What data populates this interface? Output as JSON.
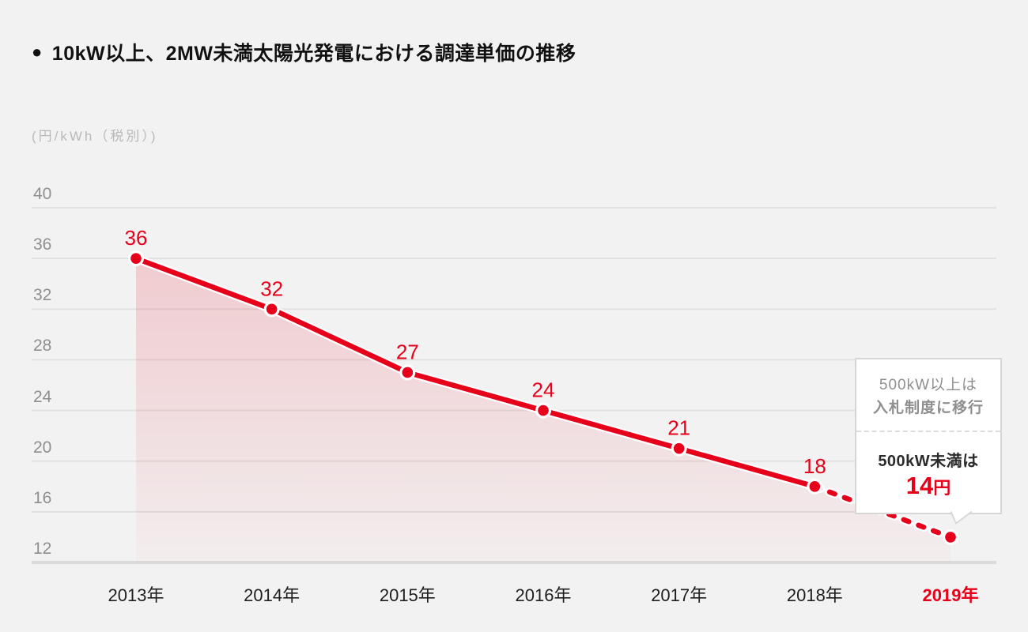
{
  "title": {
    "bullet": "●",
    "text": "10kW以上、2MW未満太陽光発電における調達単価の推移"
  },
  "unit_label": "(円/kWh（税別）)",
  "colors": {
    "background": "#f2f2f2",
    "accent_red": "#e60019",
    "grid_line": "#e1e1e1",
    "axis_line": "#dbdbdb",
    "tick_text": "#8f8f8f",
    "x_label_text": "#1f1f1f",
    "callout_border": "#d6d6d6",
    "callout_gray_text": "#8f8f8f",
    "callout_dark_text": "#2b2b2b"
  },
  "chart_data": {
    "type": "line",
    "title": "10kW以上、2MW未満太陽光発電における調達単価の推移",
    "ylabel": "(円/kWh（税別）)",
    "x": [
      "2013年",
      "2014年",
      "2015年",
      "2016年",
      "2017年",
      "2018年",
      "2019年"
    ],
    "series": [
      {
        "name": "調達単価",
        "values": [
          36,
          32,
          27,
          24,
          21,
          18,
          14
        ],
        "point_labels": [
          "36",
          "32",
          "27",
          "24",
          "21",
          "18",
          ""
        ],
        "solid_until_index": 5,
        "dashed_from_index": 5
      }
    ],
    "yticks": [
      40,
      36,
      32,
      28,
      24,
      20,
      16,
      12
    ],
    "ylim": [
      12,
      43
    ],
    "grid": "horizontal",
    "legend": "none",
    "area_fill": true,
    "highlight_last_x_label": true
  },
  "callout": {
    "top_line1": "500kW以上は",
    "top_line2": "入札制度に移行",
    "bottom_condition": "500kW未満は",
    "price_value": "14",
    "price_unit": "円"
  }
}
